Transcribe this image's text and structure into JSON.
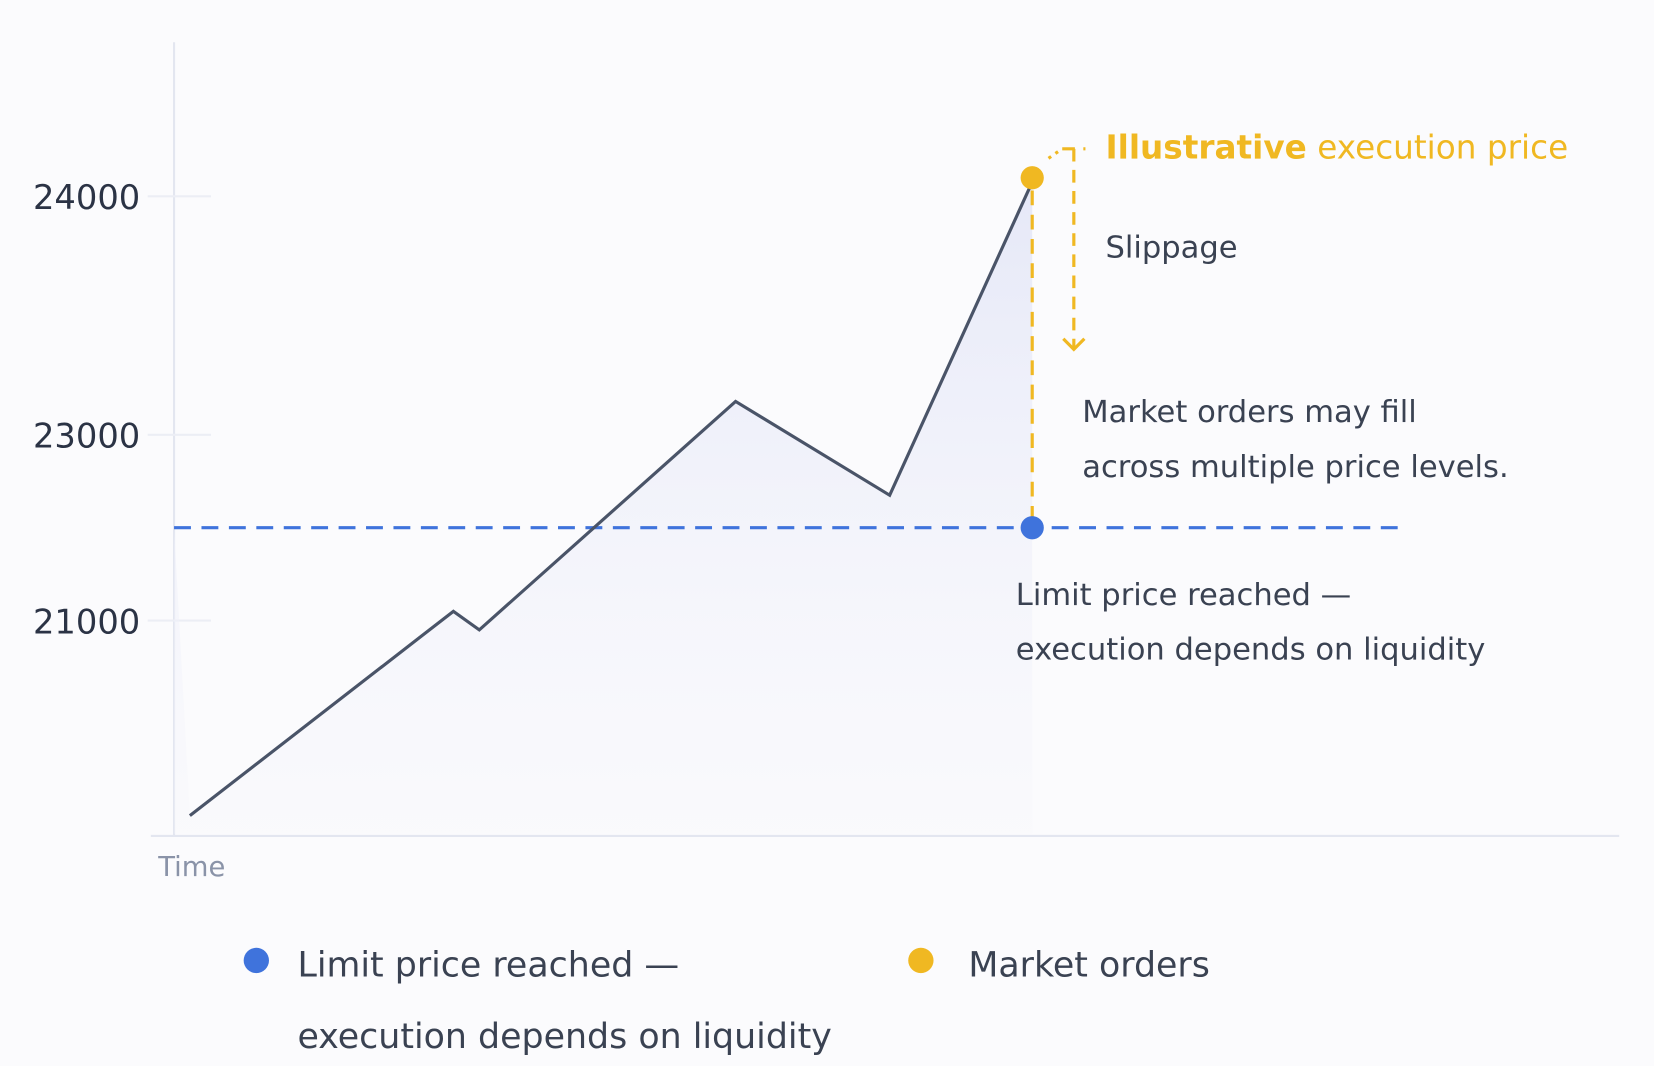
{
  "chart_data": {
    "type": "line",
    "xlabel": "Time",
    "ylabel": "",
    "y_ticks": [
      24000,
      23000,
      21000
    ],
    "x_range": [
      0,
      100
    ],
    "grid": false,
    "series": [
      {
        "x": [
          1.1,
          19.4,
          21.2,
          39.0,
          49.7,
          59.6
        ],
        "y": [
          18900,
          21100,
          20900,
          23140,
          22350,
          24060
        ],
        "color": "#4a5468"
      }
    ],
    "limit_line": {
      "y": 22000,
      "x_range": [
        0,
        85
      ],
      "color": "#3f73dc",
      "style": "dashed"
    },
    "limit_point": {
      "x": 59.6,
      "y": 22000,
      "color": "#3f73dc"
    },
    "execution_point": {
      "x": 59.6,
      "y": 24060,
      "color": "#f0b822"
    },
    "annotations": {
      "execution_label_bold": "Illustrative",
      "execution_label_rest": " execution price",
      "slippage": "Slippage",
      "market_line1": "Market orders may fill",
      "market_line2": "across multiple price levels.",
      "limit_line1": "Limit price reached —",
      "limit_line2": "execution depends on liquidity"
    },
    "legend": {
      "placement": "bottom",
      "items": [
        {
          "line1": "Limit price reached —",
          "line2": "execution depends on liquidity",
          "color": "#3f73dc"
        },
        {
          "line1": "Market orders",
          "color": "#f0b822"
        }
      ]
    }
  }
}
